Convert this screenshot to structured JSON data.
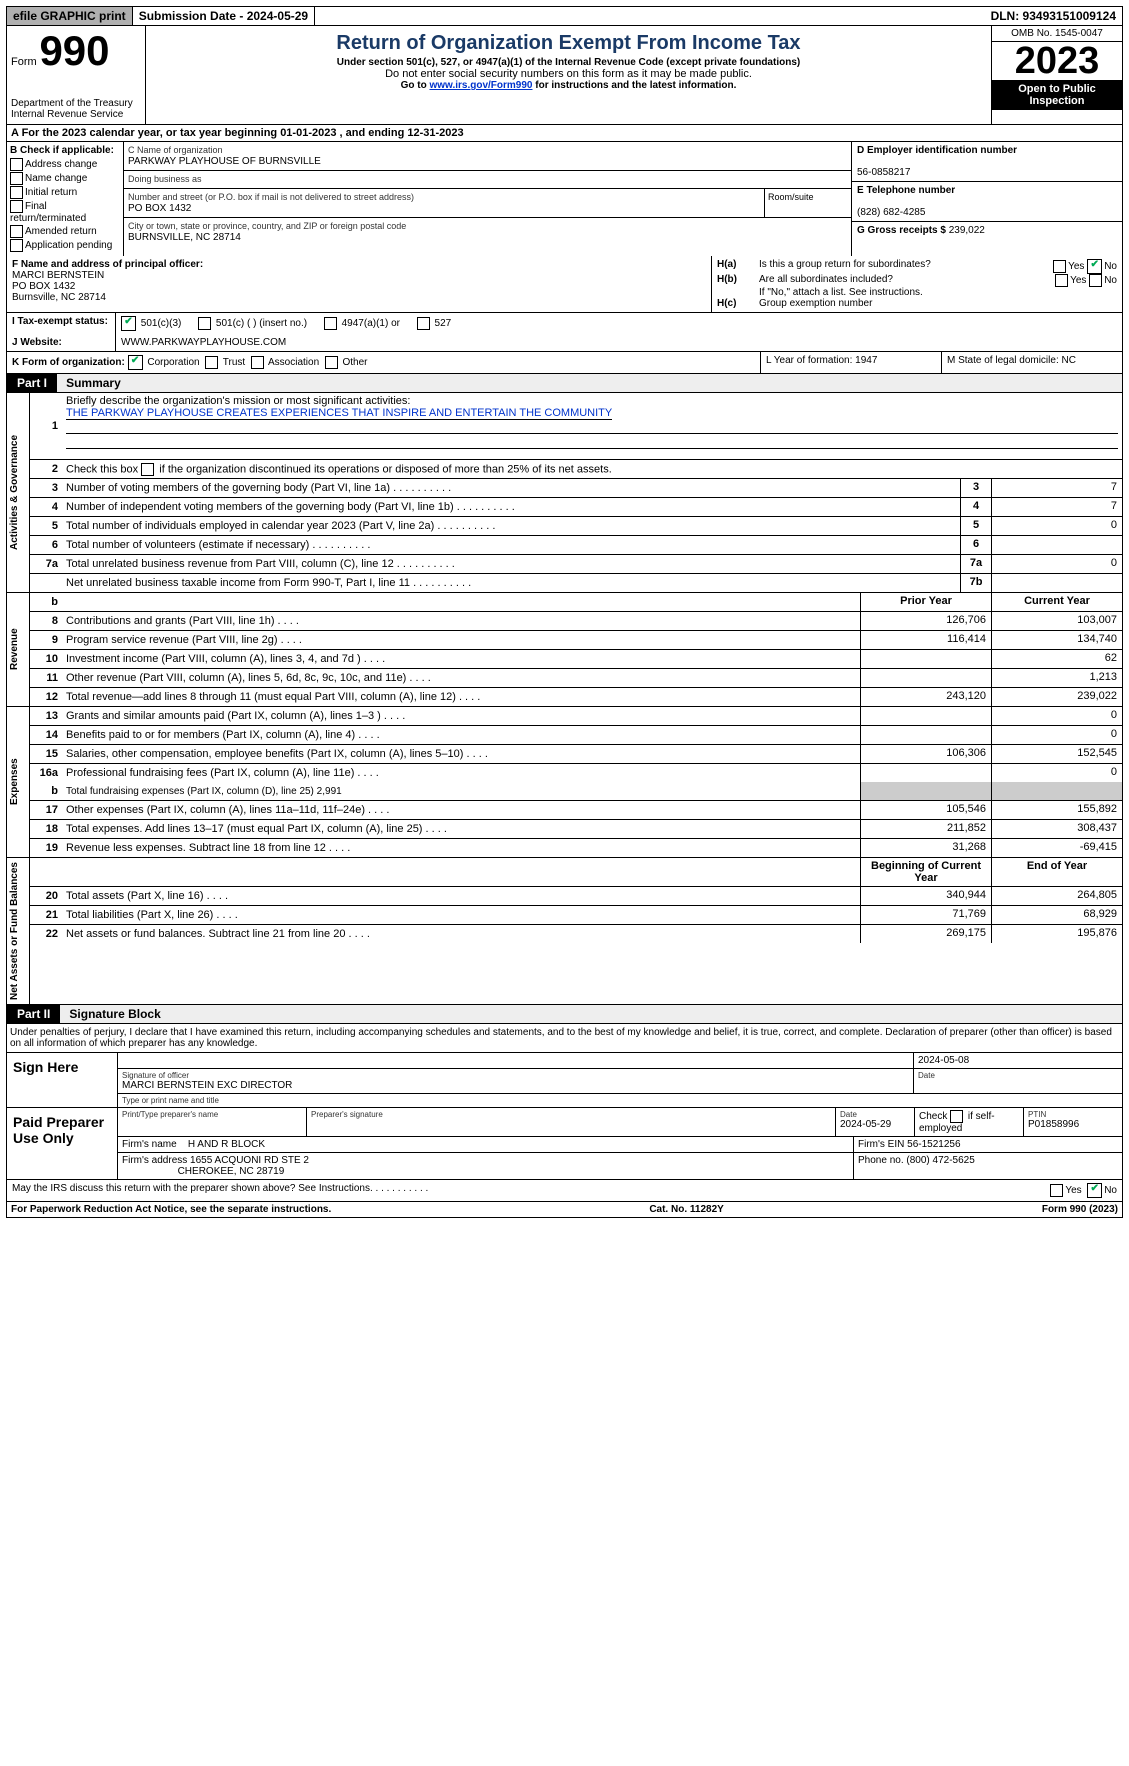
{
  "top_bar": {
    "efile": "efile GRAPHIC print",
    "submission": "Submission Date - 2024-05-29",
    "dln": "DLN: 93493151009124"
  },
  "header": {
    "form_label": "Form",
    "form_number": "990",
    "dept": "Department of the Treasury\nInternal Revenue Service",
    "title": "Return of Organization Exempt From Income Tax",
    "subtitle": "Under section 501(c), 527, or 4947(a)(1) of the Internal Revenue Code (except private foundations)",
    "note1": "Do not enter social security numbers on this form as it may be made public.",
    "note2_pre": "Go to ",
    "note2_link": "www.irs.gov/Form990",
    "note2_post": " for instructions and the latest information.",
    "omb": "OMB No. 1545-0047",
    "year": "2023",
    "inspection": "Open to Public Inspection"
  },
  "row_a": "A For the 2023 calendar year, or tax year beginning 01-01-2023   , and ending 12-31-2023",
  "section_b": {
    "heading": "B Check if applicable:",
    "items": [
      "Address change",
      "Name change",
      "Initial return",
      "Final return/terminated",
      "Amended return",
      "Application pending"
    ]
  },
  "section_c": {
    "name_label": "C Name of organization",
    "name": "PARKWAY PLAYHOUSE OF BURNSVILLE",
    "dba_label": "Doing business as",
    "dba": "",
    "addr_label": "Number and street (or P.O. box if mail is not delivered to street address)",
    "addr": "PO BOX 1432",
    "room_label": "Room/suite",
    "city_label": "City or town, state or province, country, and ZIP or foreign postal code",
    "city": "BURNSVILLE, NC  28714"
  },
  "section_d": {
    "label": "D Employer identification number",
    "value": "56-0858217"
  },
  "section_e": {
    "label": "E Telephone number",
    "value": "(828) 682-4285"
  },
  "section_g": {
    "label": "G Gross receipts $",
    "value": "239,022"
  },
  "section_f": {
    "label": "F  Name and address of principal officer:",
    "name": "MARCI BERNSTEIN",
    "addr1": "PO BOX 1432",
    "addr2": "Burnsville, NC  28714"
  },
  "section_h": {
    "a_label": "H(a)",
    "a_text": "Is this a group return for subordinates?",
    "a_yes": "Yes",
    "a_no": "No",
    "a_checked": "no",
    "b_label": "H(b)",
    "b_text": "Are all subordinates included?",
    "b_yes": "Yes",
    "b_no": "No",
    "b_note": "If \"No,\" attach a list. See instructions.",
    "c_label": "H(c)",
    "c_text": "Group exemption number"
  },
  "row_i": {
    "label": "I   Tax-exempt status:",
    "opt1": "501(c)(3)",
    "opt2": "501(c) (  ) (insert no.)",
    "opt3": "4947(a)(1) or",
    "opt4": "527",
    "checked": "501c3"
  },
  "row_j": {
    "label": "J   Website:",
    "value": "WWW.PARKWAYPLAYHOUSE.COM"
  },
  "row_k": {
    "label": "K Form of organization:",
    "opts": [
      "Corporation",
      "Trust",
      "Association",
      "Other"
    ],
    "checked": 0,
    "l": "L Year of formation: 1947",
    "m": "M State of legal domicile: NC"
  },
  "part1": {
    "tag": "Part I",
    "title": "Summary"
  },
  "part2": {
    "tag": "Part II",
    "title": "Signature Block"
  },
  "summary": {
    "q1": "Briefly describe the organization's mission or most significant activities:",
    "q1_ans": "THE PARKWAY PLAYHOUSE CREATES EXPERIENCES THAT INSPIRE AND ENTERTAIN THE COMMUNITY",
    "q2": "Check this box        if the organization discontinued its operations or disposed of more than 25% of its net assets.",
    "lines_gov": [
      {
        "n": "3",
        "d": "Number of voting members of the governing body (Part VI, line 1a)",
        "box": "3",
        "v": "7"
      },
      {
        "n": "4",
        "d": "Number of independent voting members of the governing body (Part VI, line 1b)",
        "box": "4",
        "v": "7"
      },
      {
        "n": "5",
        "d": "Total number of individuals employed in calendar year 2023 (Part V, line 2a)",
        "box": "5",
        "v": "0"
      },
      {
        "n": "6",
        "d": "Total number of volunteers (estimate if necessary)",
        "box": "6",
        "v": ""
      },
      {
        "n": "7a",
        "d": "Total unrelated business revenue from Part VIII, column (C), line 12",
        "box": "7a",
        "v": "0"
      },
      {
        "n": "",
        "d": "Net unrelated business taxable income from Form 990-T, Part I, line 11",
        "box": "7b",
        "v": ""
      }
    ],
    "col_prior": "Prior Year",
    "col_current": "Current Year",
    "revenue": [
      {
        "n": "8",
        "d": "Contributions and grants (Part VIII, line 1h)",
        "p": "126,706",
        "c": "103,007"
      },
      {
        "n": "9",
        "d": "Program service revenue (Part VIII, line 2g)",
        "p": "116,414",
        "c": "134,740"
      },
      {
        "n": "10",
        "d": "Investment income (Part VIII, column (A), lines 3, 4, and 7d )",
        "p": "",
        "c": "62"
      },
      {
        "n": "11",
        "d": "Other revenue (Part VIII, column (A), lines 5, 6d, 8c, 9c, 10c, and 11e)",
        "p": "",
        "c": "1,213"
      },
      {
        "n": "12",
        "d": "Total revenue—add lines 8 through 11 (must equal Part VIII, column (A), line 12)",
        "p": "243,120",
        "c": "239,022"
      }
    ],
    "expenses": [
      {
        "n": "13",
        "d": "Grants and similar amounts paid (Part IX, column (A), lines 1–3 )",
        "p": "",
        "c": "0"
      },
      {
        "n": "14",
        "d": "Benefits paid to or for members (Part IX, column (A), line 4)",
        "p": "",
        "c": "0"
      },
      {
        "n": "15",
        "d": "Salaries, other compensation, employee benefits (Part IX, column (A), lines 5–10)",
        "p": "106,306",
        "c": "152,545"
      },
      {
        "n": "16a",
        "d": "Professional fundraising fees (Part IX, column (A), line 11e)",
        "p": "",
        "c": "0"
      }
    ],
    "exp_b": {
      "n": "b",
      "d": "Total fundraising expenses (Part IX, column (D), line 25) 2,991"
    },
    "expenses2": [
      {
        "n": "17",
        "d": "Other expenses (Part IX, column (A), lines 11a–11d, 11f–24e)",
        "p": "105,546",
        "c": "155,892"
      },
      {
        "n": "18",
        "d": "Total expenses. Add lines 13–17 (must equal Part IX, column (A), line 25)",
        "p": "211,852",
        "c": "308,437"
      },
      {
        "n": "19",
        "d": "Revenue less expenses. Subtract line 18 from line 12",
        "p": "31,268",
        "c": "-69,415"
      }
    ],
    "col_begin": "Beginning of Current Year",
    "col_end": "End of Year",
    "netassets": [
      {
        "n": "20",
        "d": "Total assets (Part X, line 16)",
        "p": "340,944",
        "c": "264,805"
      },
      {
        "n": "21",
        "d": "Total liabilities (Part X, line 26)",
        "p": "71,769",
        "c": "68,929"
      },
      {
        "n": "22",
        "d": "Net assets or fund balances. Subtract line 21 from line 20",
        "p": "269,175",
        "c": "195,876"
      }
    ]
  },
  "sig_declaration": "Under penalties of perjury, I declare that I have examined this return, including accompanying schedules and statements, and to the best of my knowledge and belief, it is true, correct, and complete. Declaration of preparer (other than officer) is based on all information of which preparer has any knowledge.",
  "sign_here": {
    "label": "Sign Here",
    "date": "2024-05-08",
    "sig_lab": "Signature of officer",
    "sig_val": "MARCI BERNSTEIN  EXC DIRECTOR",
    "name_lab": "Type or print name and title",
    "date_lab": "Date"
  },
  "preparer": {
    "label": "Paid Preparer Use Only",
    "name_lab": "Print/Type preparer's name",
    "sig_lab": "Preparer's signature",
    "date_lab": "Date",
    "date": "2024-05-29",
    "self_lab": "Check        if self-employed",
    "ptin_lab": "PTIN",
    "ptin": "P01858996",
    "firm_name_lab": "Firm's name",
    "firm_name": "H AND R BLOCK",
    "firm_ein_lab": "Firm's EIN",
    "firm_ein": "56-1521256",
    "firm_addr_lab": "Firm's address",
    "firm_addr1": "1655 ACQUONI RD STE 2",
    "firm_addr2": "CHEROKEE, NC  28719",
    "phone_lab": "Phone no.",
    "phone": "(800) 472-5625"
  },
  "discuss": {
    "text": "May the IRS discuss this return with the preparer shown above? See Instructions.",
    "yes": "Yes",
    "no": "No",
    "checked": "no"
  },
  "footer": {
    "left": "For Paperwork Reduction Act Notice, see the separate instructions.",
    "center": "Cat. No. 11282Y",
    "right": "Form 990 (2023)"
  },
  "vlabels": {
    "gov": "Activities & Governance",
    "rev": "Revenue",
    "exp": "Expenses",
    "net": "Net Assets or Fund Balances"
  }
}
